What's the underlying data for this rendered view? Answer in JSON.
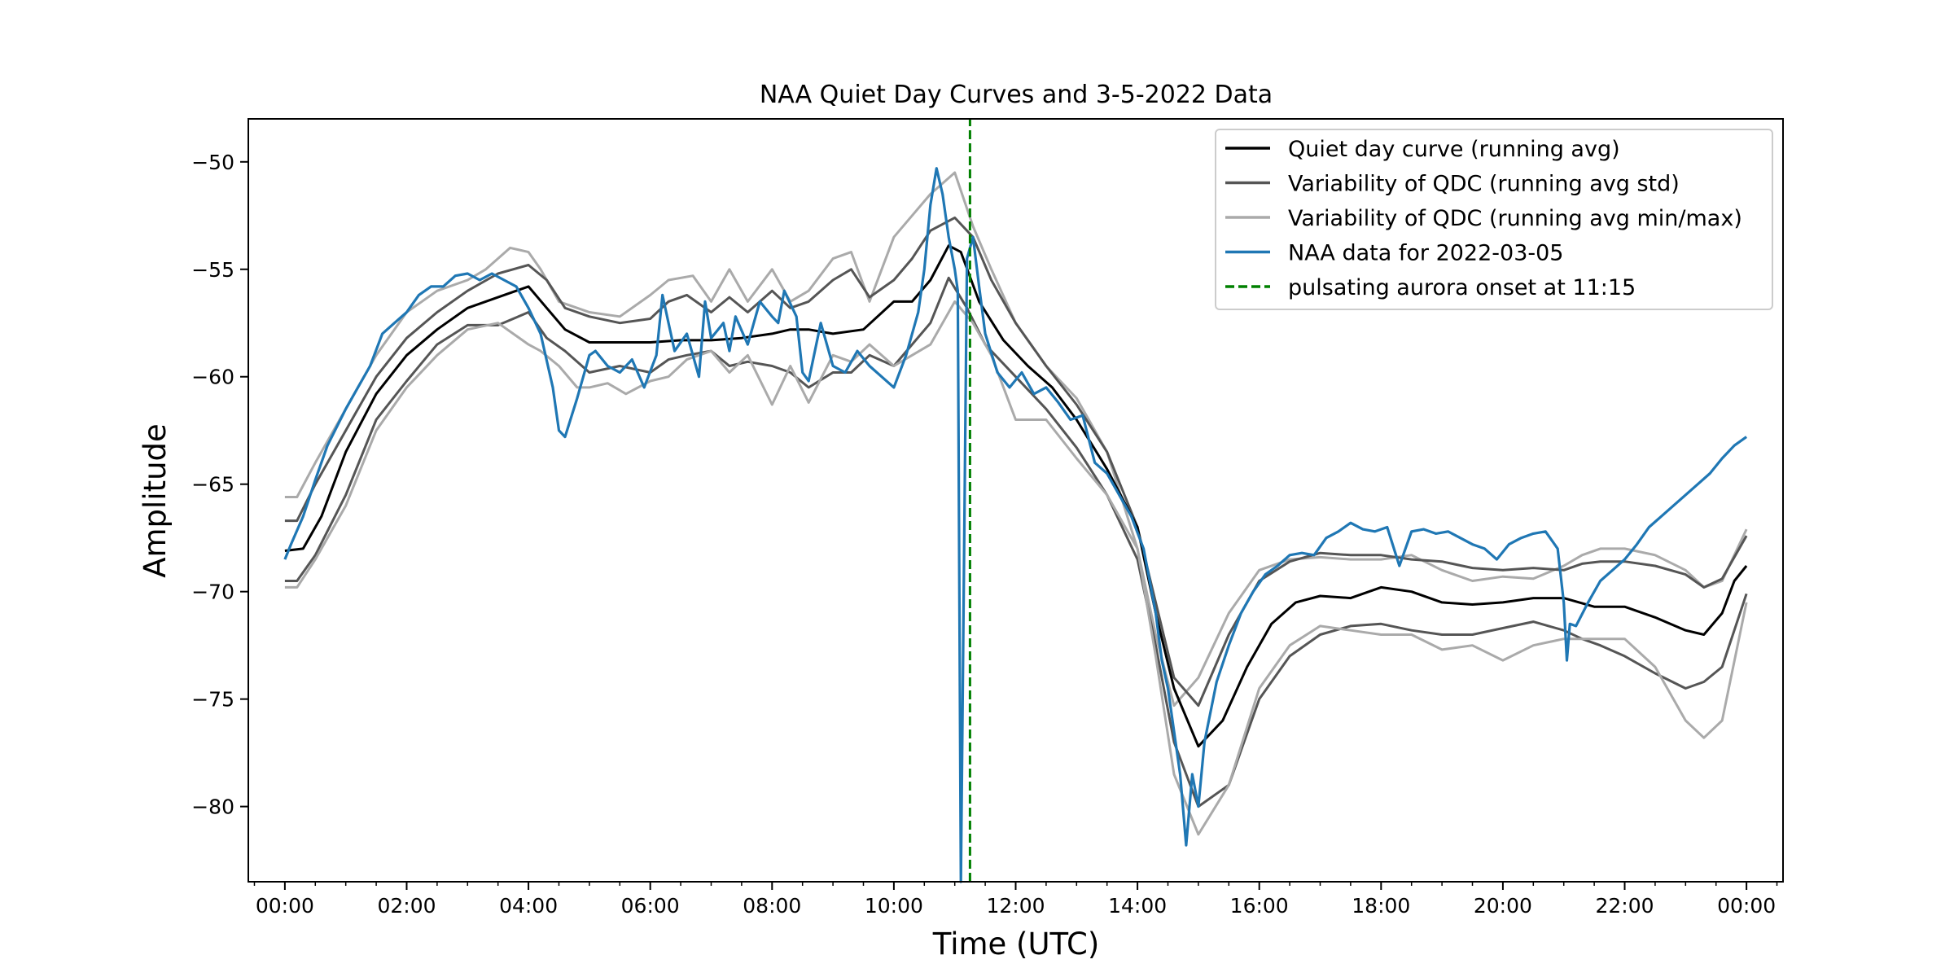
{
  "chart_data": {
    "type": "line",
    "title": "NAA Quiet Day Curves and 3-5-2022 Data",
    "xlabel": "Time (UTC)",
    "ylabel": "Amplitude",
    "xlim": [
      -0.6,
      24.6
    ],
    "ylim": [
      -83.5,
      -48.0
    ],
    "x_tick_values": [
      0,
      2,
      4,
      6,
      8,
      10,
      12,
      14,
      16,
      18,
      20,
      22,
      24
    ],
    "x_tick_labels": [
      "00:00",
      "02:00",
      "04:00",
      "06:00",
      "08:00",
      "10:00",
      "12:00",
      "14:00",
      "16:00",
      "18:00",
      "20:00",
      "22:00",
      "00:00"
    ],
    "x_minor_step_hours": 0.5,
    "y_tick_values": [
      -50,
      -55,
      -60,
      -65,
      -70,
      -75,
      -80
    ],
    "y_tick_labels": [
      "−50",
      "−55",
      "−60",
      "−65",
      "−70",
      "−75",
      "−80"
    ],
    "grid": false,
    "legend_position": "upper right",
    "series": [
      {
        "name": "Variability of QDC (running avg min/max)",
        "role": "upper",
        "color": "#aaaaaa",
        "style": "solid",
        "x": [
          0,
          0.2,
          0.5,
          1,
          1.5,
          2,
          2.5,
          3,
          3.3,
          3.7,
          4,
          4.2,
          4.5,
          5,
          5.5,
          6,
          6.3,
          6.7,
          7,
          7.3,
          7.6,
          8,
          8.3,
          8.6,
          9,
          9.3,
          9.6,
          10,
          10.3,
          10.6,
          11,
          11.3,
          11.6,
          12,
          12.5,
          13,
          13.5,
          14,
          14.3,
          14.6,
          15,
          15.5,
          16,
          16.5,
          17,
          17.5,
          18,
          18.5,
          19,
          19.5,
          20,
          20.5,
          21,
          21.3,
          21.6,
          22,
          22.5,
          23,
          23.3,
          23.6,
          24
        ],
        "y": [
          -65.6,
          -65.6,
          -64,
          -61.5,
          -59,
          -57,
          -56,
          -55.5,
          -55,
          -54,
          -54.2,
          -55,
          -56.5,
          -57,
          -57.2,
          -56.2,
          -55.5,
          -55.3,
          -56.5,
          -55,
          -56.5,
          -55,
          -56.5,
          -56,
          -54.5,
          -54.2,
          -56.5,
          -53.5,
          -52.5,
          -51.5,
          -50.5,
          -53,
          -55,
          -57.5,
          -59.5,
          -61,
          -63.5,
          -68,
          -72,
          -75.3,
          -74,
          -71,
          -69,
          -68.5,
          -68.4,
          -68.5,
          -68.5,
          -68.3,
          -69,
          -69.5,
          -69.3,
          -69.4,
          -68.8,
          -68.3,
          -68,
          -68,
          -68.3,
          -69,
          -69.8,
          -69.5,
          -67.1
        ]
      },
      {
        "name": "Variability of QDC (running avg std)",
        "role": "upper",
        "color": "#555555",
        "style": "solid",
        "x": [
          0,
          0.2,
          0.5,
          1,
          1.5,
          2,
          2.5,
          3,
          3.5,
          4,
          4.3,
          4.6,
          5,
          5.5,
          6,
          6.3,
          6.6,
          7,
          7.3,
          7.6,
          8,
          8.3,
          8.6,
          9,
          9.3,
          9.6,
          10,
          10.3,
          10.6,
          11,
          11.3,
          11.6,
          12,
          12.5,
          13,
          13.5,
          14,
          14.3,
          14.6,
          15,
          15.5,
          16,
          16.5,
          17,
          17.5,
          18,
          18.5,
          19,
          19.5,
          20,
          20.5,
          21,
          21.3,
          21.6,
          22,
          22.5,
          23,
          23.3,
          23.6,
          24
        ],
        "y": [
          -66.7,
          -66.7,
          -65,
          -62.5,
          -60,
          -58.2,
          -57,
          -56,
          -55.2,
          -54.8,
          -55.5,
          -56.8,
          -57.2,
          -57.5,
          -57.3,
          -56.5,
          -56.2,
          -57,
          -56.3,
          -57,
          -56,
          -56.8,
          -56.5,
          -55.5,
          -55,
          -56.3,
          -55.5,
          -54.5,
          -53.2,
          -52.6,
          -53.5,
          -55.5,
          -57.5,
          -59.5,
          -61.3,
          -63.5,
          -67,
          -70.5,
          -74,
          -75.3,
          -72,
          -69.5,
          -68.6,
          -68.2,
          -68.3,
          -68.3,
          -68.5,
          -68.6,
          -68.9,
          -69,
          -68.9,
          -69,
          -68.7,
          -68.6,
          -68.6,
          -68.8,
          -69.2,
          -69.8,
          -69.4,
          -67.4
        ]
      },
      {
        "name": "Quiet day curve (running avg)",
        "role": "mean",
        "color": "#000000",
        "style": "solid",
        "x": [
          0,
          0.3,
          0.6,
          1,
          1.5,
          2,
          2.5,
          3,
          3.5,
          4,
          4.3,
          4.6,
          5,
          5.5,
          6,
          6.5,
          7,
          7.5,
          8,
          8.3,
          8.6,
          9,
          9.5,
          10,
          10.3,
          10.6,
          10.9,
          11.1,
          11.4,
          11.8,
          12.2,
          12.6,
          13,
          13.5,
          14,
          14.3,
          14.6,
          15,
          15.4,
          15.8,
          16.2,
          16.6,
          17,
          17.5,
          18,
          18.5,
          19,
          19.5,
          20,
          20.5,
          21,
          21.5,
          22,
          22.5,
          23,
          23.3,
          23.6,
          23.8,
          24
        ],
        "y": [
          -68.1,
          -68,
          -66.5,
          -63.5,
          -60.8,
          -59,
          -57.8,
          -56.8,
          -56.3,
          -55.8,
          -56.8,
          -57.8,
          -58.4,
          -58.4,
          -58.4,
          -58.3,
          -58.3,
          -58.2,
          -58,
          -57.8,
          -57.8,
          -58,
          -57.8,
          -56.5,
          -56.5,
          -55.5,
          -53.9,
          -54.2,
          -56.5,
          -58.3,
          -59.5,
          -60.5,
          -62,
          -64.3,
          -67,
          -71,
          -74.5,
          -77.2,
          -76,
          -73.5,
          -71.5,
          -70.5,
          -70.2,
          -70.3,
          -69.8,
          -70,
          -70.5,
          -70.6,
          -70.5,
          -70.3,
          -70.3,
          -70.7,
          -70.7,
          -71.2,
          -71.8,
          -72,
          -71,
          -69.5,
          -68.8
        ]
      },
      {
        "name": "Variability of QDC (running avg std)",
        "role": "lower",
        "color": "#555555",
        "style": "solid",
        "x": [
          0,
          0.2,
          0.5,
          1,
          1.5,
          2,
          2.5,
          3,
          3.5,
          4,
          4.3,
          4.6,
          5,
          5.5,
          6,
          6.3,
          6.6,
          7,
          7.3,
          7.6,
          8,
          8.3,
          8.6,
          9,
          9.3,
          9.6,
          10,
          10.3,
          10.6,
          10.9,
          11.2,
          11.5,
          12,
          12.5,
          13,
          13.5,
          14,
          14.3,
          14.6,
          15,
          15.5,
          16,
          16.5,
          17,
          17.5,
          18,
          18.5,
          19,
          19.5,
          20,
          20.5,
          21,
          21.3,
          21.6,
          22,
          22.5,
          23,
          23.3,
          23.6,
          24
        ],
        "y": [
          -69.5,
          -69.5,
          -68.3,
          -65.5,
          -62,
          -60.2,
          -58.5,
          -57.6,
          -57.6,
          -57,
          -58.2,
          -58.8,
          -59.8,
          -59.5,
          -59.8,
          -59.2,
          -59,
          -58.8,
          -59.5,
          -59.3,
          -59.5,
          -59.8,
          -60.5,
          -59.8,
          -59.8,
          -59,
          -59.5,
          -58.5,
          -57.5,
          -55.4,
          -56.8,
          -58.5,
          -60,
          -61.5,
          -63.3,
          -65.5,
          -68.5,
          -72.5,
          -77,
          -80,
          -79,
          -75,
          -73,
          -72,
          -71.6,
          -71.5,
          -71.8,
          -72,
          -72,
          -71.7,
          -71.4,
          -71.8,
          -72.2,
          -72.5,
          -73,
          -73.8,
          -74.5,
          -74.2,
          -73.5,
          -70.1
        ]
      },
      {
        "name": "Variability of QDC (running avg min/max)",
        "role": "lower",
        "color": "#aaaaaa",
        "style": "solid",
        "x": [
          0,
          0.2,
          0.5,
          1,
          1.5,
          2,
          2.5,
          3,
          3.5,
          4,
          4.2,
          4.5,
          4.8,
          5,
          5.3,
          5.6,
          6,
          6.3,
          6.6,
          7,
          7.3,
          7.6,
          8,
          8.3,
          8.6,
          9,
          9.3,
          9.6,
          10,
          10.3,
          10.6,
          11,
          11.3,
          11.6,
          12,
          12.5,
          13,
          13.5,
          14,
          14.3,
          14.6,
          15,
          15.5,
          16,
          16.5,
          17,
          17.5,
          18,
          18.5,
          19,
          19.5,
          20,
          20.5,
          21,
          21.5,
          22,
          22.5,
          23,
          23.3,
          23.6,
          24
        ],
        "y": [
          -69.8,
          -69.8,
          -68.5,
          -66,
          -62.5,
          -60.5,
          -59,
          -57.8,
          -57.5,
          -58.5,
          -58.8,
          -59.5,
          -60.5,
          -60.5,
          -60.3,
          -60.8,
          -60.2,
          -60,
          -59.2,
          -58.8,
          -59.8,
          -59,
          -61.3,
          -59.5,
          -61.2,
          -59,
          -59.3,
          -58.5,
          -59.5,
          -59,
          -58.5,
          -56.5,
          -57.5,
          -59,
          -62,
          -62,
          -63.8,
          -65.5,
          -68,
          -73,
          -78.5,
          -81.3,
          -79,
          -74.5,
          -72.5,
          -71.6,
          -71.8,
          -72,
          -72,
          -72.7,
          -72.5,
          -73.2,
          -72.5,
          -72.2,
          -72.2,
          -72.2,
          -73.5,
          -76,
          -76.8,
          -76,
          -70.5
        ]
      },
      {
        "name": "NAA data for 2022-03-05",
        "role": "data",
        "color": "#1f77b4",
        "style": "solid",
        "x": [
          0,
          0.1,
          0.3,
          0.5,
          0.7,
          1,
          1.2,
          1.4,
          1.6,
          1.8,
          2,
          2.2,
          2.4,
          2.6,
          2.8,
          3,
          3.2,
          3.4,
          3.6,
          3.8,
          4,
          4.2,
          4.4,
          4.5,
          4.6,
          4.8,
          4.9,
          5,
          5.1,
          5.3,
          5.5,
          5.7,
          5.9,
          6.1,
          6.2,
          6.3,
          6.4,
          6.6,
          6.8,
          6.9,
          7,
          7.2,
          7.3,
          7.4,
          7.6,
          7.8,
          8,
          8.1,
          8.2,
          8.4,
          8.5,
          8.6,
          8.8,
          9,
          9.2,
          9.4,
          9.6,
          9.8,
          10,
          10.2,
          10.4,
          10.5,
          10.6,
          10.7,
          10.8,
          10.9,
          11,
          11.05,
          11.1,
          11.2,
          11.3,
          11.4,
          11.5,
          11.7,
          11.9,
          12.1,
          12.3,
          12.5,
          12.7,
          12.9,
          13.1,
          13.3,
          13.5,
          13.7,
          13.9,
          14.1,
          14.2,
          14.3,
          14.4,
          14.5,
          14.6,
          14.7,
          14.8,
          14.9,
          15,
          15.1,
          15.3,
          15.5,
          15.7,
          15.9,
          16.1,
          16.3,
          16.5,
          16.7,
          16.9,
          17.1,
          17.3,
          17.5,
          17.7,
          17.9,
          18.1,
          18.3,
          18.5,
          18.7,
          18.9,
          19.1,
          19.3,
          19.5,
          19.7,
          19.9,
          20.1,
          20.3,
          20.5,
          20.7,
          20.9,
          21,
          21.05,
          21.1,
          21.2,
          21.4,
          21.6,
          21.8,
          22,
          22.2,
          22.4,
          22.6,
          22.8,
          23,
          23.2,
          23.4,
          23.6,
          23.8,
          24
        ],
        "y": [
          -68.5,
          -67.8,
          -66.5,
          -64.8,
          -63.2,
          -61.5,
          -60.5,
          -59.5,
          -58,
          -57.5,
          -57,
          -56.2,
          -55.8,
          -55.8,
          -55.3,
          -55.2,
          -55.5,
          -55.2,
          -55.5,
          -55.8,
          -56.8,
          -58,
          -60.5,
          -62.5,
          -62.8,
          -61,
          -60,
          -59,
          -58.8,
          -59.5,
          -59.8,
          -59.2,
          -60.5,
          -59,
          -56.2,
          -57.5,
          -58.8,
          -58,
          -60,
          -56.5,
          -58.2,
          -57.5,
          -58.8,
          -57.2,
          -58.5,
          -56.5,
          -57.2,
          -57.5,
          -56,
          -57.2,
          -59.8,
          -60.2,
          -57.5,
          -59.5,
          -59.8,
          -58.8,
          -59.5,
          -60,
          -60.5,
          -59,
          -57,
          -55,
          -52,
          -50.3,
          -51.5,
          -53.5,
          -55,
          -56,
          -83.5,
          -54.5,
          -53.5,
          -55.8,
          -58,
          -59.8,
          -60.5,
          -59.8,
          -60.8,
          -60.5,
          -61.2,
          -62,
          -61.8,
          -64,
          -64.5,
          -65.5,
          -66.5,
          -68,
          -69.5,
          -71,
          -73.2,
          -74.5,
          -76.5,
          -78.5,
          -81.8,
          -78.5,
          -80,
          -77,
          -74.2,
          -72.5,
          -71,
          -70,
          -69.2,
          -68.8,
          -68.3,
          -68.2,
          -68.3,
          -67.5,
          -67.2,
          -66.8,
          -67.1,
          -67.2,
          -67,
          -68.8,
          -67.2,
          -67.1,
          -67.3,
          -67.2,
          -67.5,
          -67.8,
          -68,
          -68.5,
          -67.8,
          -67.5,
          -67.3,
          -67.2,
          -68,
          -70.5,
          -73.2,
          -71.5,
          -71.6,
          -70.5,
          -69.5,
          -69,
          -68.5,
          -67.8,
          -67,
          -66.5,
          -66,
          -65.5,
          -65,
          -64.5,
          -63.8,
          -63.2,
          -62.8
        ]
      },
      {
        "name": "pulsating aurora onset at 11:15",
        "role": "vline",
        "color": "#008000",
        "style": "dashed",
        "x": [
          11.25,
          11.25
        ],
        "y": [
          -83.5,
          -48.0
        ]
      }
    ],
    "legend": [
      {
        "label": "Quiet day curve (running avg)",
        "color": "#000000",
        "style": "solid"
      },
      {
        "label": "Variability of QDC (running avg std)",
        "color": "#555555",
        "style": "solid"
      },
      {
        "label": "Variability of QDC (running avg min/max)",
        "color": "#aaaaaa",
        "style": "solid"
      },
      {
        "label": "NAA data for 2022-03-05",
        "color": "#1f77b4",
        "style": "solid"
      },
      {
        "label": "pulsating aurora onset at 11:15",
        "color": "#008000",
        "style": "dashed"
      }
    ]
  }
}
